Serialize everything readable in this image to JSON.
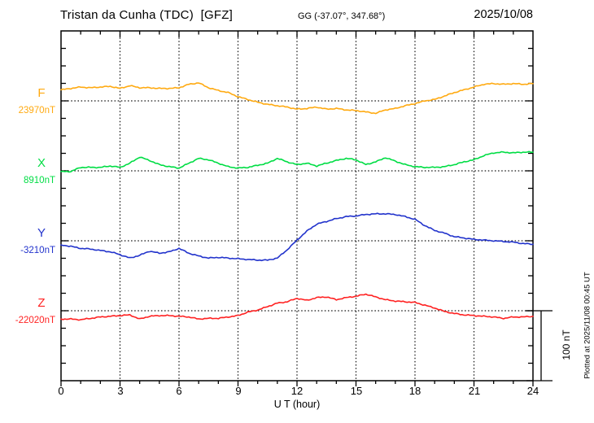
{
  "header": {
    "station_title": "Tristan da Cunha (TDC)  [GFZ]",
    "coords": "GG (-37.07°, 347.68°)",
    "date": "2025/10/08"
  },
  "axis": {
    "x_label": "U T (hour)",
    "x_ticks": [
      "0",
      "3",
      "6",
      "9",
      "12",
      "15",
      "18",
      "21",
      "24"
    ]
  },
  "scale_bar": {
    "label": "100 nT",
    "nT": 100
  },
  "footer_note": "Plotted at 2025/11/08 00:45 UT",
  "components": [
    {
      "id": "F",
      "label": "F",
      "base_label": "23970nT",
      "color": "#FFAA11"
    },
    {
      "id": "X",
      "label": "X",
      "base_label": "8910nT",
      "color": "#00DD44"
    },
    {
      "id": "Y",
      "label": "Y",
      "base_label": "-3210nT",
      "color": "#2233CC"
    },
    {
      "id": "Z",
      "label": "Z",
      "base_label": "-22020nT",
      "color": "#FF2222"
    }
  ],
  "chart_data": {
    "type": "line",
    "title": "Tristan da Cunha (TDC) [GFZ] magnetogram, 2025/10/08",
    "xlabel": "U T (hour)",
    "x_range": [
      0,
      24
    ],
    "gridlines_every_hours": 3,
    "scale_bar_nT": 100,
    "x": [
      0,
      0.5,
      1,
      1.5,
      2,
      2.5,
      3,
      3.5,
      4,
      4.5,
      5,
      5.5,
      6,
      6.5,
      7,
      7.5,
      8,
      8.5,
      9,
      9.5,
      10,
      10.5,
      11,
      11.5,
      12,
      12.5,
      13,
      13.5,
      14,
      14.5,
      15,
      15.5,
      16,
      16.5,
      17,
      17.5,
      18,
      18.5,
      19,
      19.5,
      20,
      20.5,
      21,
      21.5,
      22,
      22.5,
      23,
      23.5,
      24
    ],
    "series": [
      {
        "name": "F",
        "base_nT": 23970,
        "color": "#FFAA11",
        "values": [
          23986,
          23988,
          23990,
          23989,
          23990,
          23991,
          23988,
          23992,
          23989,
          23989,
          23988,
          23988,
          23989,
          23994,
          23996,
          23989,
          23985,
          23982,
          23976,
          23972,
          23968,
          23965,
          23963,
          23961,
          23958,
          23959,
          23961,
          23958,
          23959,
          23957,
          23956,
          23954,
          23952,
          23957,
          23959,
          23963,
          23966,
          23970,
          23972,
          23977,
          23982,
          23986,
          23990,
          23994,
          23995,
          23994,
          23995,
          23994,
          23995
        ]
      },
      {
        "name": "X",
        "base_nT": 8910,
        "color": "#00DD44",
        "values": [
          8909,
          8909,
          8915,
          8915,
          8915,
          8917,
          8915,
          8921,
          8930,
          8925,
          8919,
          8916,
          8914,
          8921,
          8928,
          8926,
          8921,
          8916,
          8914,
          8915,
          8918,
          8921,
          8928,
          8923,
          8919,
          8921,
          8917,
          8921,
          8925,
          8928,
          8926,
          8919,
          8923,
          8929,
          8924,
          8919,
          8916,
          8915,
          8915,
          8916,
          8919,
          8923,
          8926,
          8932,
          8936,
          8937,
          8936,
          8937,
          8937
        ]
      },
      {
        "name": "Y",
        "base_nT": -3210,
        "color": "#2233CC",
        "values": [
          -3216,
          -3218,
          -3221,
          -3222,
          -3224,
          -3226,
          -3230,
          -3235,
          -3231,
          -3225,
          -3228,
          -3226,
          -3221,
          -3228,
          -3232,
          -3235,
          -3234,
          -3235,
          -3236,
          -3237,
          -3238,
          -3238,
          -3235,
          -3223,
          -3209,
          -3196,
          -3186,
          -3182,
          -3178,
          -3175,
          -3174,
          -3172,
          -3171,
          -3171,
          -3172,
          -3175,
          -3179,
          -3188,
          -3195,
          -3199,
          -3204,
          -3206,
          -3208,
          -3209,
          -3210,
          -3211,
          -3212,
          -3214,
          -3215
        ]
      },
      {
        "name": "Z",
        "base_nT": -22020,
        "color": "#FF2222",
        "values": [
          -22032,
          -22032,
          -22033,
          -22031,
          -22029,
          -22028,
          -22027,
          -22026,
          -22032,
          -22028,
          -22027,
          -22027,
          -22028,
          -22029,
          -22032,
          -22031,
          -22031,
          -22029,
          -22027,
          -22022,
          -22019,
          -22014,
          -22009,
          -22007,
          -22002,
          -22005,
          -22001,
          -22000,
          -22004,
          -22001,
          -21999,
          -21996,
          -22000,
          -22004,
          -22006,
          -22007,
          -22008,
          -22012,
          -22016,
          -22021,
          -22024,
          -22026,
          -22027,
          -22028,
          -22029,
          -22031,
          -22029,
          -22029,
          -22028
        ]
      }
    ]
  }
}
